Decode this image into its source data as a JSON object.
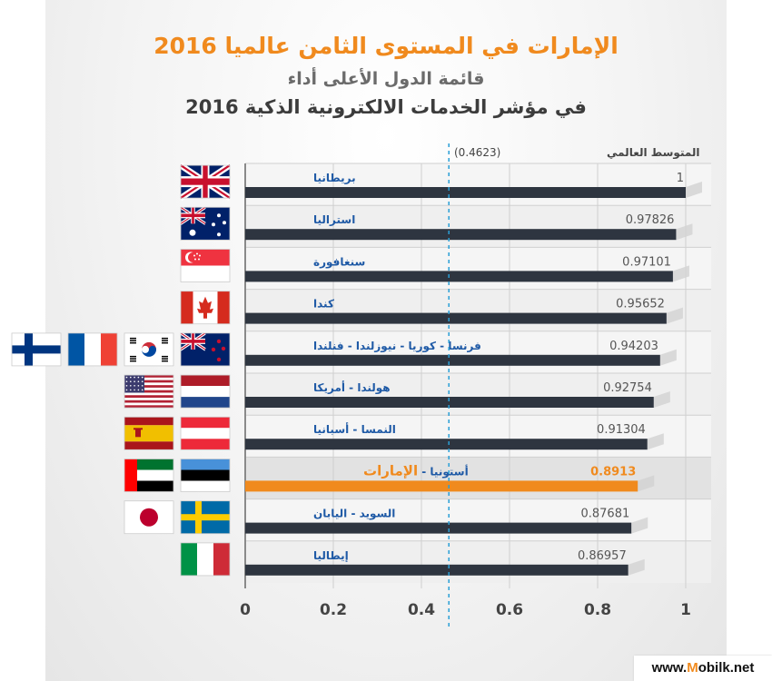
{
  "title": "الإمارات في المستوى الثامن عالميا 2016",
  "subtitle_1": "قائمة الدول الأعلى أداء",
  "subtitle_2": "في مؤشر الخدمات الالكترونية الذكية 2016",
  "watermark": {
    "prefix": "www.",
    "accent": "M",
    "suffix": "obilk.net"
  },
  "colors": {
    "bar": "#2e3540",
    "highlight": "#f08a1e",
    "label": "#1f5aa6",
    "average_line": "#2a9fd6"
  },
  "chart_data": {
    "type": "bar",
    "orientation": "horizontal",
    "categories": [
      "بريطانيا",
      "استراليا",
      "سنغافورة",
      "كندا",
      "فرنسا - كوريا - نيوزلندا - فنلندا",
      "هولندا - أمريكا",
      "النمسا - أسبانيا",
      "أستونيا - الإمارات",
      "السويد - اليابان",
      "إيطاليا"
    ],
    "values": [
      1,
      0.97826,
      0.97101,
      0.95652,
      0.94203,
      0.92754,
      0.91304,
      0.8913,
      0.87681,
      0.86957
    ],
    "value_labels": [
      "1",
      "0.97826",
      "0.97101",
      "0.95652",
      "0.94203",
      "0.92754",
      "0.91304",
      "0.8913",
      "0.87681",
      "0.86957"
    ],
    "highlight_index": 7,
    "highlight_label_prefix": "أستونيا - ",
    "highlight_label_main": "الإمارات",
    "flags": [
      [
        "uk"
      ],
      [
        "australia"
      ],
      [
        "singapore"
      ],
      [
        "canada"
      ],
      [
        "finland",
        "france",
        "south-korea",
        "new-zealand"
      ],
      [
        "usa",
        "netherlands"
      ],
      [
        "spain",
        "austria"
      ],
      [
        "uae",
        "estonia"
      ],
      [
        "japan",
        "sweden"
      ],
      [
        "italy"
      ]
    ],
    "xlim": [
      0,
      1
    ],
    "xticks": [
      0,
      0.2,
      0.4,
      0.6,
      0.8,
      1
    ],
    "xtick_labels": [
      "0",
      "0.2",
      "0.4",
      "0.6",
      "0.8",
      "1"
    ],
    "average_value": 0.4623,
    "average_label": "المتوسط العالمي",
    "average_value_label": "(0.4623)"
  }
}
